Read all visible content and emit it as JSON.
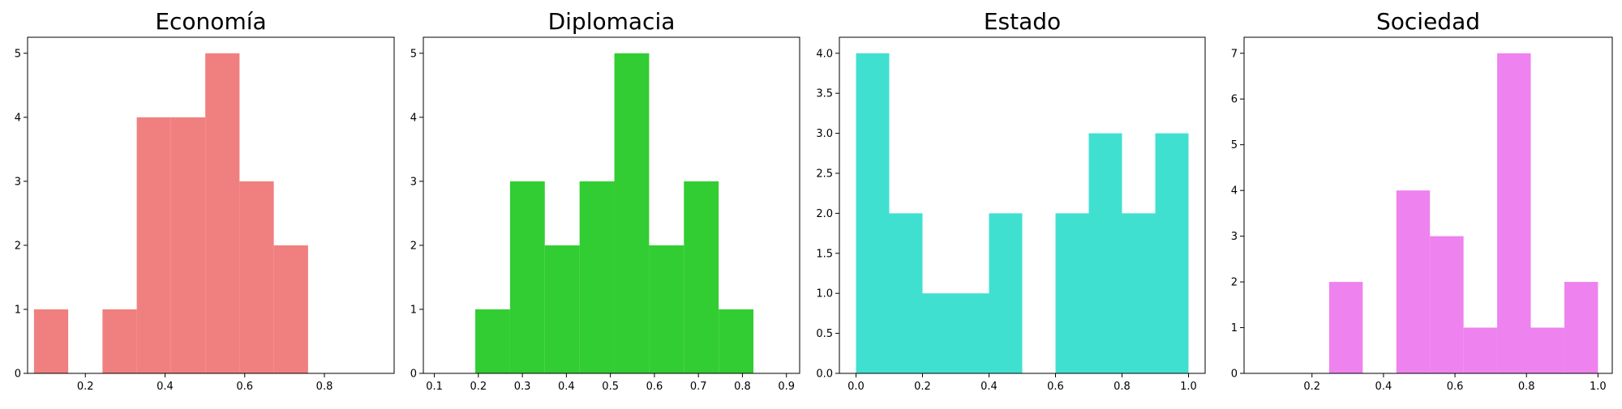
{
  "chart_data": [
    {
      "type": "bar",
      "subtype": "histogram",
      "title": "Economía",
      "color": "#f08080",
      "bins": [
        {
          "x0": 0.071,
          "x1": 0.157,
          "value": 1
        },
        {
          "x0": 0.157,
          "x1": 0.243,
          "value": 0
        },
        {
          "x0": 0.243,
          "x1": 0.329,
          "value": 1
        },
        {
          "x0": 0.329,
          "x1": 0.415,
          "value": 4
        },
        {
          "x0": 0.415,
          "x1": 0.501,
          "value": 4
        },
        {
          "x0": 0.501,
          "x1": 0.587,
          "value": 5
        },
        {
          "x0": 0.587,
          "x1": 0.673,
          "value": 3
        },
        {
          "x0": 0.673,
          "x1": 0.759,
          "value": 2
        }
      ],
      "xlim": [
        0.055,
        0.975
      ],
      "ylim": [
        0,
        5.25
      ],
      "xticks": [
        {
          "v": 0.2,
          "label": "0.2"
        },
        {
          "v": 0.4,
          "label": "0.4"
        },
        {
          "v": 0.6,
          "label": "0.6"
        },
        {
          "v": 0.8,
          "label": "0.8"
        }
      ],
      "yticks": [
        {
          "v": 0,
          "label": "0"
        },
        {
          "v": 1,
          "label": "1"
        },
        {
          "v": 2,
          "label": "2"
        },
        {
          "v": 3,
          "label": "3"
        },
        {
          "v": 4,
          "label": "4"
        },
        {
          "v": 5,
          "label": "5"
        }
      ],
      "xlabel": "",
      "ylabel": "",
      "grid": false
    },
    {
      "type": "bar",
      "subtype": "histogram",
      "title": "Diplomacia",
      "color": "#32cd32",
      "bins": [
        {
          "x0": 0.193,
          "x1": 0.272,
          "value": 1
        },
        {
          "x0": 0.272,
          "x1": 0.351,
          "value": 3
        },
        {
          "x0": 0.351,
          "x1": 0.43,
          "value": 2
        },
        {
          "x0": 0.43,
          "x1": 0.509,
          "value": 3
        },
        {
          "x0": 0.509,
          "x1": 0.588,
          "value": 5
        },
        {
          "x0": 0.588,
          "x1": 0.667,
          "value": 2
        },
        {
          "x0": 0.667,
          "x1": 0.746,
          "value": 3
        },
        {
          "x0": 0.746,
          "x1": 0.825,
          "value": 1
        }
      ],
      "xlim": [
        0.075,
        0.93
      ],
      "ylim": [
        0,
        5.25
      ],
      "xticks": [
        {
          "v": 0.1,
          "label": "0.1"
        },
        {
          "v": 0.2,
          "label": "0.2"
        },
        {
          "v": 0.3,
          "label": "0.3"
        },
        {
          "v": 0.4,
          "label": "0.4"
        },
        {
          "v": 0.5,
          "label": "0.5"
        },
        {
          "v": 0.6,
          "label": "0.6"
        },
        {
          "v": 0.7,
          "label": "0.7"
        },
        {
          "v": 0.8,
          "label": "0.8"
        },
        {
          "v": 0.9,
          "label": "0.9"
        }
      ],
      "yticks": [
        {
          "v": 0,
          "label": "0"
        },
        {
          "v": 1,
          "label": "1"
        },
        {
          "v": 2,
          "label": "2"
        },
        {
          "v": 3,
          "label": "3"
        },
        {
          "v": 4,
          "label": "4"
        },
        {
          "v": 5,
          "label": "5"
        }
      ],
      "xlabel": "",
      "ylabel": "",
      "grid": false
    },
    {
      "type": "bar",
      "subtype": "histogram",
      "title": "Estado",
      "color": "#40e0d0",
      "bins": [
        {
          "x0": 0.0,
          "x1": 0.1,
          "value": 4
        },
        {
          "x0": 0.1,
          "x1": 0.2,
          "value": 2
        },
        {
          "x0": 0.2,
          "x1": 0.3,
          "value": 1
        },
        {
          "x0": 0.3,
          "x1": 0.4,
          "value": 1
        },
        {
          "x0": 0.4,
          "x1": 0.5,
          "value": 2
        },
        {
          "x0": 0.5,
          "x1": 0.6,
          "value": 0
        },
        {
          "x0": 0.6,
          "x1": 0.7,
          "value": 2
        },
        {
          "x0": 0.7,
          "x1": 0.8,
          "value": 3
        },
        {
          "x0": 0.8,
          "x1": 0.9,
          "value": 2
        },
        {
          "x0": 0.9,
          "x1": 1.0,
          "value": 3
        }
      ],
      "xlim": [
        -0.05,
        1.05
      ],
      "ylim": [
        0,
        4.2
      ],
      "xticks": [
        {
          "v": 0.0,
          "label": "0.0"
        },
        {
          "v": 0.2,
          "label": "0.2"
        },
        {
          "v": 0.4,
          "label": "0.4"
        },
        {
          "v": 0.6,
          "label": "0.6"
        },
        {
          "v": 0.8,
          "label": "0.8"
        },
        {
          "v": 1.0,
          "label": "1.0"
        }
      ],
      "yticks": [
        {
          "v": 0.0,
          "label": "0.0"
        },
        {
          "v": 0.5,
          "label": "0.5"
        },
        {
          "v": 1.0,
          "label": "1.0"
        },
        {
          "v": 1.5,
          "label": "1.5"
        },
        {
          "v": 2.0,
          "label": "2.0"
        },
        {
          "v": 2.5,
          "label": "2.5"
        },
        {
          "v": 3.0,
          "label": "3.0"
        },
        {
          "v": 3.5,
          "label": "3.5"
        },
        {
          "v": 4.0,
          "label": "4.0"
        }
      ],
      "xlabel": "",
      "ylabel": "",
      "grid": false
    },
    {
      "type": "bar",
      "subtype": "histogram",
      "title": "Sociedad",
      "color": "#ee82ee",
      "bins": [
        {
          "x0": 0.248,
          "x1": 0.342,
          "value": 2
        },
        {
          "x0": 0.342,
          "x1": 0.436,
          "value": 0
        },
        {
          "x0": 0.436,
          "x1": 0.53,
          "value": 4
        },
        {
          "x0": 0.53,
          "x1": 0.624,
          "value": 3
        },
        {
          "x0": 0.624,
          "x1": 0.718,
          "value": 1
        },
        {
          "x0": 0.718,
          "x1": 0.812,
          "value": 7
        },
        {
          "x0": 0.812,
          "x1": 0.906,
          "value": 1
        },
        {
          "x0": 0.906,
          "x1": 1.0,
          "value": 2
        }
      ],
      "xlim": [
        0.01,
        1.04
      ],
      "ylim": [
        0,
        7.35
      ],
      "xticks": [
        {
          "v": 0.2,
          "label": "0.2"
        },
        {
          "v": 0.4,
          "label": "0.4"
        },
        {
          "v": 0.6,
          "label": "0.6"
        },
        {
          "v": 0.8,
          "label": "0.8"
        },
        {
          "v": 1.0,
          "label": "1.0"
        }
      ],
      "yticks": [
        {
          "v": 0,
          "label": "0"
        },
        {
          "v": 1,
          "label": "1"
        },
        {
          "v": 2,
          "label": "2"
        },
        {
          "v": 3,
          "label": "3"
        },
        {
          "v": 4,
          "label": "4"
        },
        {
          "v": 5,
          "label": "5"
        },
        {
          "v": 6,
          "label": "6"
        },
        {
          "v": 7,
          "label": "7"
        }
      ],
      "xlabel": "",
      "ylabel": "",
      "grid": false
    }
  ]
}
